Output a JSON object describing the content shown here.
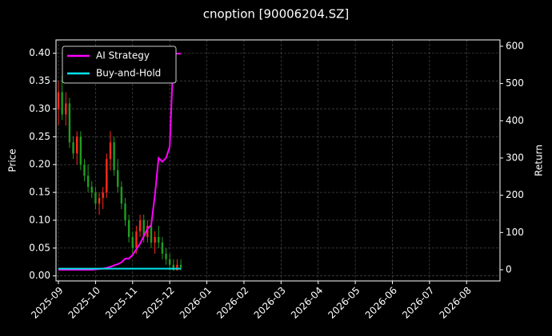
{
  "chart_data": {
    "type": "candlestick",
    "title": "cnoption [90006204.SZ]",
    "y_label": "Price",
    "y2_label": "Return",
    "xlim": [
      -0.065,
      11.9
    ],
    "xticks": [
      {
        "value": 0,
        "label": "2025-09"
      },
      {
        "value": 1,
        "label": "2025-10"
      },
      {
        "value": 2,
        "label": "2025-11"
      },
      {
        "value": 3,
        "label": "2025-12"
      },
      {
        "value": 4,
        "label": "2026-01"
      },
      {
        "value": 5,
        "label": "2026-02"
      },
      {
        "value": 6,
        "label": "2026-03"
      },
      {
        "value": 7,
        "label": "2026-04"
      },
      {
        "value": 8,
        "label": "2026-05"
      },
      {
        "value": 9,
        "label": "2026-06"
      },
      {
        "value": 10,
        "label": "2026-07"
      },
      {
        "value": 11,
        "label": "2026-08"
      }
    ],
    "ylim": [
      -0.009,
      0.424
    ],
    "yticks": [
      {
        "value": 0,
        "label": "0.00"
      },
      {
        "value": 0.05,
        "label": "0.05"
      },
      {
        "value": 0.1,
        "label": "0.10"
      },
      {
        "value": 0.15,
        "label": "0.15"
      },
      {
        "value": 0.2,
        "label": "0.20"
      },
      {
        "value": 0.25,
        "label": "0.25"
      },
      {
        "value": 0.3,
        "label": "0.30"
      },
      {
        "value": 0.35,
        "label": "0.35"
      },
      {
        "value": 0.4,
        "label": "0.40"
      }
    ],
    "y2lim": [
      -30,
      617
    ],
    "y2ticks": [
      0,
      100,
      200,
      300,
      400,
      500,
      600
    ],
    "grid": true,
    "legend": "upper left",
    "up_color": "#ff2a1a",
    "down_color": "#1f9e1f",
    "candles": {
      "x": [
        0.0,
        0.1,
        0.2,
        0.3,
        0.4,
        0.5,
        0.6,
        0.7,
        0.8,
        0.9,
        1.0,
        1.1,
        1.2,
        1.3,
        1.4,
        1.5,
        1.6,
        1.7,
        1.8,
        1.9,
        2.0,
        2.1,
        2.2,
        2.3,
        2.4,
        2.5,
        2.6,
        2.7,
        2.8,
        2.9,
        3.0,
        3.1,
        3.2,
        3.3
      ],
      "open": [
        0.3,
        0.33,
        0.29,
        0.31,
        0.24,
        0.22,
        0.25,
        0.2,
        0.18,
        0.16,
        0.15,
        0.13,
        0.14,
        0.15,
        0.21,
        0.24,
        0.19,
        0.16,
        0.13,
        0.1,
        0.07,
        0.05,
        0.08,
        0.1,
        0.07,
        0.09,
        0.06,
        0.07,
        0.06,
        0.04,
        0.03,
        0.02,
        0.01,
        0.02
      ],
      "high": [
        0.35,
        0.36,
        0.33,
        0.32,
        0.25,
        0.26,
        0.26,
        0.21,
        0.2,
        0.17,
        0.16,
        0.15,
        0.16,
        0.22,
        0.26,
        0.25,
        0.21,
        0.17,
        0.14,
        0.11,
        0.08,
        0.09,
        0.11,
        0.11,
        0.1,
        0.1,
        0.08,
        0.09,
        0.07,
        0.05,
        0.04,
        0.03,
        0.03,
        0.03
      ],
      "low": [
        0.27,
        0.28,
        0.27,
        0.23,
        0.21,
        0.2,
        0.19,
        0.17,
        0.15,
        0.14,
        0.12,
        0.11,
        0.12,
        0.14,
        0.19,
        0.18,
        0.15,
        0.12,
        0.09,
        0.06,
        0.04,
        0.04,
        0.07,
        0.06,
        0.06,
        0.05,
        0.04,
        0.05,
        0.03,
        0.02,
        0.01,
        0.01,
        0.01,
        0.01
      ],
      "close": [
        0.33,
        0.29,
        0.31,
        0.24,
        0.22,
        0.25,
        0.2,
        0.18,
        0.16,
        0.15,
        0.13,
        0.14,
        0.15,
        0.21,
        0.24,
        0.19,
        0.16,
        0.13,
        0.1,
        0.07,
        0.05,
        0.08,
        0.1,
        0.07,
        0.09,
        0.06,
        0.07,
        0.06,
        0.04,
        0.03,
        0.02,
        0.01,
        0.02,
        0.015
      ]
    },
    "series": [
      {
        "name": "AI Strategy",
        "color": "#ff00ff",
        "axis": "y2",
        "x": [
          0.0,
          0.1,
          0.2,
          0.3,
          0.4,
          0.5,
          0.6,
          0.7,
          0.8,
          0.9,
          1.0,
          1.1,
          1.2,
          1.3,
          1.4,
          1.5,
          1.6,
          1.7,
          1.8,
          1.9,
          2.0,
          2.1,
          2.2,
          2.3,
          2.4,
          2.5,
          2.6,
          2.7,
          2.8,
          2.9,
          3.0,
          3.1,
          3.2,
          3.3
        ],
        "values": [
          0,
          0,
          0,
          0,
          0,
          0,
          0,
          0,
          0,
          0,
          1,
          2,
          3,
          5,
          8,
          12,
          15,
          20,
          30,
          30,
          40,
          55,
          70,
          90,
          110,
          120,
          200,
          300,
          290,
          300,
          330,
          580,
          580,
          580
        ]
      },
      {
        "name": "Buy-and-Hold",
        "color": "#00e5ee",
        "axis": "y2",
        "x": [
          0.0,
          0.1,
          0.2,
          0.3,
          0.4,
          0.5,
          0.6,
          0.7,
          0.8,
          0.9,
          1.0,
          1.1,
          1.2,
          1.3,
          1.4,
          1.5,
          1.6,
          1.7,
          1.8,
          1.9,
          2.0,
          2.1,
          2.2,
          2.3,
          2.4,
          2.5,
          2.6,
          2.7,
          2.8,
          2.9,
          3.0,
          3.1,
          3.2,
          3.3
        ],
        "values": [
          3,
          3,
          3,
          3,
          3,
          3,
          3,
          3,
          3,
          3,
          3,
          3,
          3,
          3,
          3,
          3,
          3,
          3,
          3,
          3,
          3,
          3,
          3,
          3,
          3,
          3,
          3,
          3,
          3,
          3,
          3,
          3,
          3,
          3
        ]
      }
    ]
  }
}
